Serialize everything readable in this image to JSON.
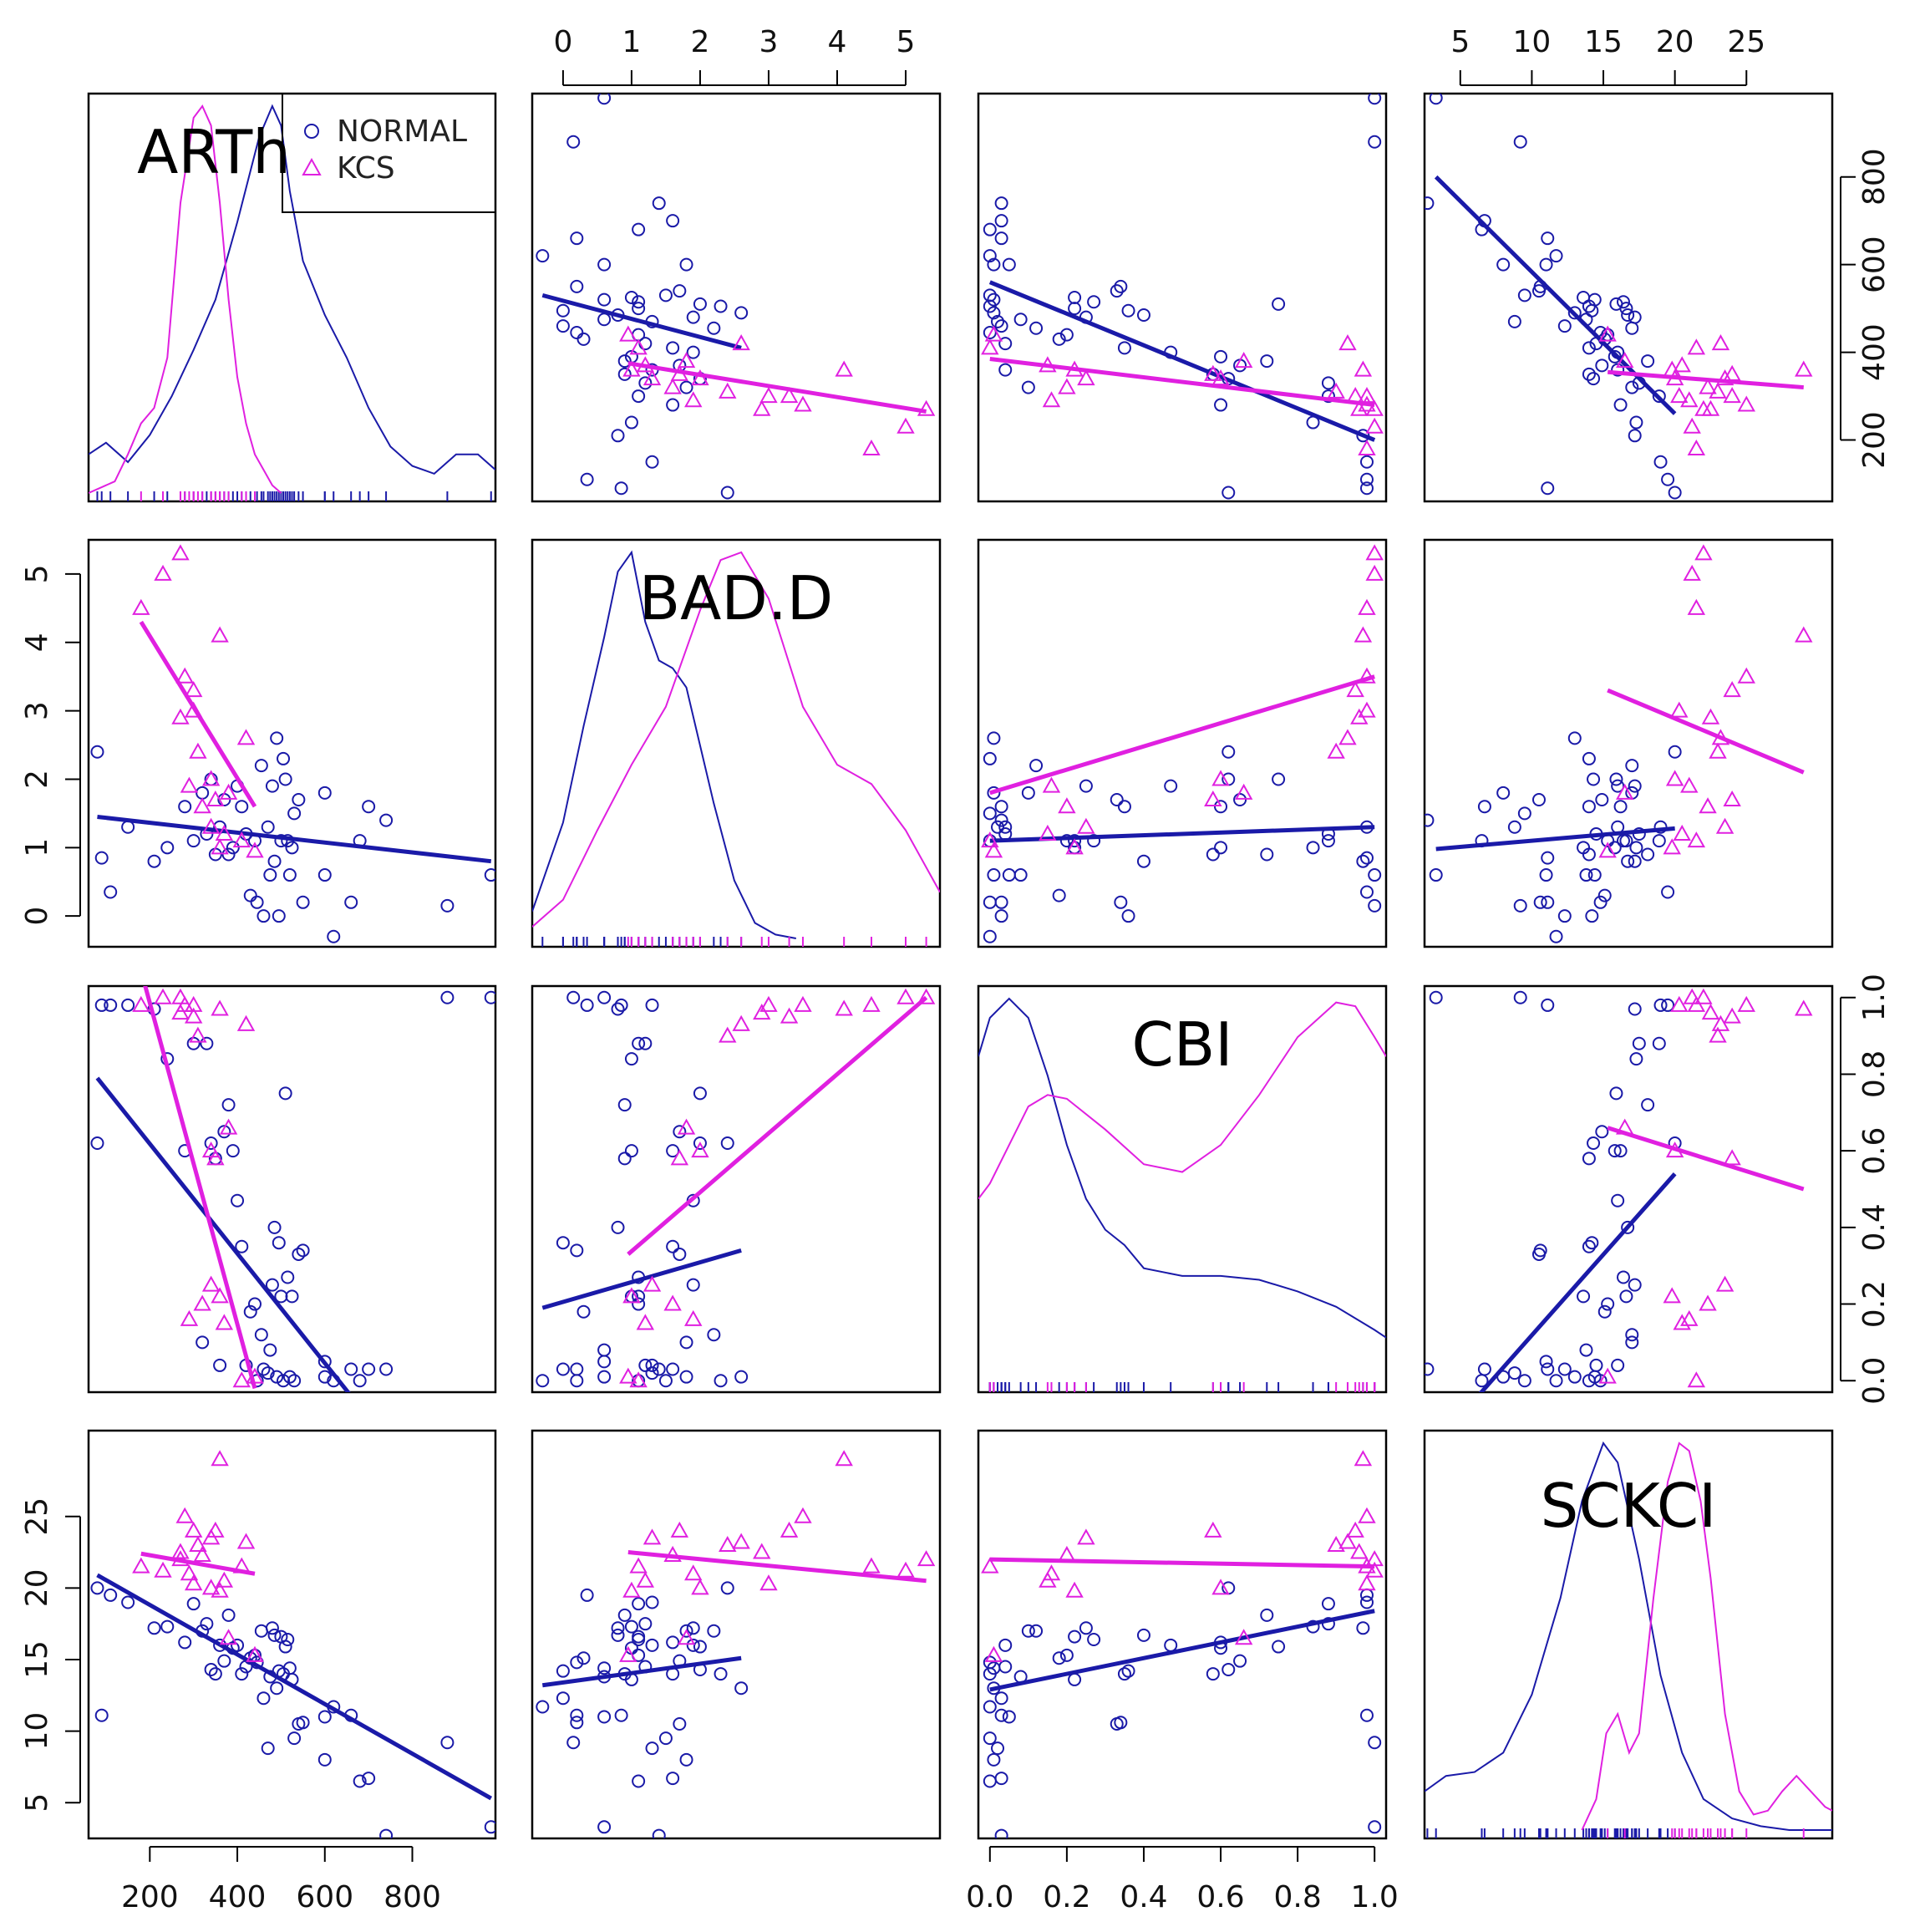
{
  "chart_data": {
    "type": "scatter-matrix",
    "variables": [
      "ARTh",
      "BAD.D",
      "CBI",
      "SCKCI"
    ],
    "ranges": {
      "ARTh": [
        60,
        990
      ],
      "BAD.D": [
        -0.45,
        5.5
      ],
      "CBI": [
        -0.03,
        1.03
      ],
      "SCKCI": [
        2.5,
        31
      ]
    },
    "ticks": {
      "ARTh": [
        200,
        400,
        600,
        800
      ],
      "BAD.D": [
        0,
        1,
        2,
        3,
        4,
        5
      ],
      "CBI": [
        0.0,
        0.2,
        0.4,
        0.6,
        0.8,
        1.0
      ],
      "SCKCI": [
        5,
        10,
        15,
        20,
        25
      ]
    },
    "tick_labels": {
      "ARTh": [
        "200",
        "400",
        "600",
        "800"
      ],
      "BAD.D": [
        "0",
        "1",
        "2",
        "3",
        "4",
        "5"
      ],
      "CBI": [
        "0.0",
        "0.2",
        "0.4",
        "0.6",
        "0.8",
        "1.0"
      ],
      "SCKCI": [
        "5",
        "10",
        "15",
        "20",
        "25"
      ]
    },
    "colors": {
      "NORMAL": "#1a1aa8",
      "KCS": "#e020e0",
      "frame": "#000000"
    },
    "legend": {
      "position": "top-right of ARTh panel",
      "entries": [
        "NORMAL",
        "KCS"
      ]
    },
    "groups": [
      {
        "name": "NORMAL",
        "marker": "circle",
        "points": [
          [
            980,
            0.6,
            1.0,
            3.3
          ],
          [
            880,
            0.15,
            1.0,
            9.2
          ],
          [
            740,
            1.4,
            0.03,
            2.7
          ],
          [
            700,
            1.6,
            0.03,
            6.7
          ],
          [
            680,
            1.1,
            0.0,
            6.5
          ],
          [
            660,
            0.2,
            0.03,
            11.1
          ],
          [
            620,
            -0.3,
            0.0,
            11.7
          ],
          [
            600,
            1.8,
            0.01,
            8.0
          ],
          [
            600,
            0.6,
            0.05,
            11.0
          ],
          [
            550,
            0.2,
            0.34,
            10.6
          ],
          [
            540,
            1.7,
            0.33,
            10.5
          ],
          [
            530,
            1.5,
            0.0,
            9.5
          ],
          [
            525,
            1.0,
            0.22,
            13.6
          ],
          [
            520,
            0.6,
            0.01,
            14.4
          ],
          [
            515,
            1.1,
            0.27,
            16.4
          ],
          [
            510,
            2.0,
            0.75,
            15.9
          ],
          [
            505,
            2.3,
            0.0,
            14.0
          ],
          [
            500,
            1.1,
            0.22,
            16.6
          ],
          [
            495,
            0.0,
            0.36,
            14.2
          ],
          [
            490,
            2.6,
            0.01,
            13.0
          ],
          [
            485,
            0.8,
            0.4,
            16.7
          ],
          [
            480,
            1.9,
            0.25,
            17.2
          ],
          [
            475,
            0.6,
            0.08,
            13.8
          ],
          [
            470,
            1.3,
            0.02,
            8.8
          ],
          [
            460,
            0.0,
            0.03,
            12.3
          ],
          [
            455,
            2.2,
            0.12,
            17.0
          ],
          [
            445,
            0.2,
            0.0,
            14.8
          ],
          [
            440,
            1.1,
            0.2,
            15.3
          ],
          [
            430,
            0.3,
            0.18,
            15.1
          ],
          [
            420,
            1.2,
            0.04,
            14.5
          ],
          [
            410,
            1.6,
            0.35,
            14.0
          ],
          [
            400,
            1.9,
            0.47,
            16.0
          ],
          [
            390,
            1.0,
            0.6,
            15.8
          ],
          [
            380,
            0.9,
            0.72,
            18.1
          ],
          [
            370,
            1.7,
            0.65,
            14.9
          ],
          [
            360,
            1.3,
            0.04,
            16.0
          ],
          [
            350,
            0.9,
            0.58,
            14.0
          ],
          [
            340,
            2.0,
            0.62,
            14.3
          ],
          [
            330,
            1.2,
            0.88,
            17.5
          ],
          [
            320,
            1.8,
            0.1,
            17.0
          ],
          [
            300,
            1.1,
            0.88,
            18.9
          ],
          [
            280,
            1.6,
            0.6,
            16.2
          ],
          [
            240,
            1.0,
            0.84,
            17.3
          ],
          [
            210,
            0.8,
            0.97,
            17.2
          ],
          [
            150,
            1.3,
            0.98,
            19.0
          ],
          [
            110,
            0.35,
            0.98,
            19.5
          ],
          [
            90,
            0.85,
            0.98,
            11.1
          ],
          [
            80,
            2.4,
            0.62,
            20.0
          ]
        ],
        "fits": {
          "BAD.D~ARTh": {
            "x": [
              80,
              980
            ],
            "y": [
              1.45,
              0.8
            ]
          },
          "CBI~ARTh": {
            "x": [
              80,
              660
            ],
            "y": [
              0.79,
              -0.04
            ]
          },
          "SCKCI~ARTh": {
            "x": [
              80,
              980
            ],
            "y": [
              20.9,
              5.3
            ]
          },
          "ARTh~BAD.D": {
            "x": [
              -0.3,
              2.6
            ],
            "y": [
              530,
              410
            ]
          },
          "CBI~BAD.D": {
            "x": [
              -0.3,
              2.6
            ],
            "y": [
              0.19,
              0.34
            ]
          },
          "SCKCI~BAD.D": {
            "x": [
              -0.3,
              2.6
            ],
            "y": [
              13.2,
              15.1
            ]
          },
          "ARTh~CBI": {
            "x": [
              0.0,
              1.0
            ],
            "y": [
              560,
              200
            ]
          },
          "BAD.D~CBI": {
            "x": [
              0.0,
              1.0
            ],
            "y": [
              1.1,
              1.3
            ]
          },
          "SCKCI~CBI": {
            "x": [
              0.0,
              1.0
            ],
            "y": [
              12.9,
              18.4
            ]
          },
          "ARTh~SCKCI": {
            "x": [
              3.3,
              20.0
            ],
            "y": [
              800,
              260
            ]
          },
          "BAD.D~SCKCI": {
            "x": [
              3.3,
              20.0
            ],
            "y": [
              0.98,
              1.28
            ]
          },
          "CBI~SCKCI": {
            "x": [
              6.0,
              20.0
            ],
            "y": [
              -0.05,
              0.54
            ]
          }
        },
        "density": {
          "ARTh": {
            "x": [
              60,
              100,
              150,
              200,
              250,
              300,
              350,
              400,
              450,
              480,
              500,
              520,
              550,
              600,
              650,
              700,
              750,
              800,
              850,
              900,
              950,
              990
            ],
            "y": [
              0.1,
              0.13,
              0.08,
              0.15,
              0.25,
              0.37,
              0.5,
              0.7,
              0.92,
              1.0,
              0.95,
              0.78,
              0.6,
              0.46,
              0.35,
              0.22,
              0.12,
              0.07,
              0.05,
              0.1,
              0.1,
              0.06
            ]
          },
          "BAD.D": {
            "x": [
              -0.45,
              0.0,
              0.3,
              0.6,
              0.8,
              1.0,
              1.2,
              1.4,
              1.6,
              1.8,
              2.0,
              2.2,
              2.5,
              2.8,
              3.1,
              3.4
            ],
            "y": [
              0.07,
              0.3,
              0.55,
              0.78,
              0.95,
              1.0,
              0.82,
              0.72,
              0.7,
              0.65,
              0.5,
              0.35,
              0.15,
              0.04,
              0.01,
              0.0
            ]
          },
          "CBI": {
            "x": [
              -0.03,
              0.0,
              0.05,
              0.1,
              0.15,
              0.2,
              0.25,
              0.3,
              0.35,
              0.4,
              0.5,
              0.6,
              0.7,
              0.8,
              0.9,
              1.0,
              1.03
            ],
            "y": [
              0.85,
              0.95,
              1.0,
              0.95,
              0.8,
              0.62,
              0.48,
              0.4,
              0.36,
              0.3,
              0.28,
              0.28,
              0.27,
              0.24,
              0.2,
              0.14,
              0.12
            ]
          },
          "SCKCI": {
            "x": [
              2.5,
              4.0,
              6.0,
              8.0,
              10.0,
              12.0,
              13.5,
              15.0,
              16.0,
              17.5,
              19.0,
              20.5,
              22.0,
              24.0,
              26.0,
              28.0,
              31.0
            ],
            "y": [
              0.1,
              0.14,
              0.15,
              0.2,
              0.35,
              0.6,
              0.85,
              1.0,
              0.95,
              0.7,
              0.4,
              0.2,
              0.08,
              0.03,
              0.01,
              0.0,
              0.0
            ]
          }
        }
      },
      {
        "name": "KCS",
        "marker": "triangle",
        "points": [
          [
            180,
            4.5,
            0.98,
            21.5
          ],
          [
            230,
            5.0,
            1.0,
            21.2
          ],
          [
            270,
            5.3,
            1.0,
            22.0
          ],
          [
            360,
            4.1,
            0.97,
            29.0
          ],
          [
            280,
            3.5,
            0.98,
            25.0
          ],
          [
            300,
            3.3,
            0.95,
            24.0
          ],
          [
            300,
            3.0,
            0.98,
            20.3
          ],
          [
            270,
            2.9,
            0.96,
            22.5
          ],
          [
            310,
            2.4,
            0.9,
            23.0
          ],
          [
            340,
            2.0,
            0.6,
            20.0
          ],
          [
            420,
            2.6,
            0.93,
            23.2
          ],
          [
            380,
            1.8,
            0.66,
            16.5
          ],
          [
            350,
            1.7,
            0.58,
            24.0
          ],
          [
            340,
            1.3,
            0.25,
            23.5
          ],
          [
            320,
            1.6,
            0.2,
            22.3
          ],
          [
            290,
            1.9,
            0.16,
            21.0
          ],
          [
            370,
            1.2,
            0.15,
            20.5
          ],
          [
            360,
            1.0,
            0.22,
            19.8
          ],
          [
            410,
            1.1,
            0.0,
            21.5
          ],
          [
            440,
            0.95,
            0.01,
            15.3
          ]
        ],
        "fits": {
          "BAD.D~ARTh": {
            "x": [
              180,
              440
            ],
            "y": [
              4.3,
              1.6
            ]
          },
          "CBI~ARTh": {
            "x": [
              180,
              440
            ],
            "y": [
              1.07,
              -0.02
            ]
          },
          "SCKCI~ARTh": {
            "x": [
              180,
              440
            ],
            "y": [
              22.4,
              21.0
            ]
          },
          "ARTh~BAD.D": {
            "x": [
              0.95,
              5.3
            ],
            "y": [
              375,
              265
            ]
          },
          "CBI~BAD.D": {
            "x": [
              0.95,
              5.3
            ],
            "y": [
              0.33,
              1.0
            ]
          },
          "SCKCI~BAD.D": {
            "x": [
              0.95,
              5.3
            ],
            "y": [
              22.5,
              20.5
            ]
          },
          "ARTh~CBI": {
            "x": [
              0.0,
              1.0
            ],
            "y": [
              385,
              280
            ]
          },
          "BAD.D~CBI": {
            "x": [
              0.0,
              1.0
            ],
            "y": [
              1.8,
              3.5
            ]
          },
          "SCKCI~CBI": {
            "x": [
              0.0,
              1.0
            ],
            "y": [
              22.0,
              21.5
            ]
          },
          "ARTh~SCKCI": {
            "x": [
              15.3,
              29.0
            ],
            "y": [
              355,
              320
            ]
          },
          "BAD.D~SCKCI": {
            "x": [
              15.3,
              29.0
            ],
            "y": [
              3.3,
              2.1
            ]
          },
          "CBI~SCKCI": {
            "x": [
              15.3,
              29.0
            ],
            "y": [
              0.66,
              0.5
            ]
          }
        },
        "density": {
          "ARTh": {
            "x": [
              60,
              120,
              150,
              180,
              210,
              240,
              270,
              300,
              320,
              340,
              360,
              380,
              400,
              420,
              440,
              460,
              480,
              500
            ],
            "y": [
              0.0,
              0.03,
              0.1,
              0.18,
              0.22,
              0.35,
              0.75,
              0.97,
              1.0,
              0.95,
              0.75,
              0.5,
              0.3,
              0.18,
              0.1,
              0.06,
              0.02,
              0.0
            ]
          },
          "BAD.D": {
            "x": [
              -0.45,
              0.0,
              0.5,
              1.0,
              1.5,
              2.0,
              2.3,
              2.6,
              3.0,
              3.5,
              4.0,
              4.5,
              5.0,
              5.5
            ],
            "y": [
              0.03,
              0.1,
              0.28,
              0.45,
              0.6,
              0.85,
              0.98,
              1.0,
              0.88,
              0.6,
              0.45,
              0.4,
              0.28,
              0.12
            ]
          },
          "CBI": {
            "x": [
              -0.03,
              0.0,
              0.05,
              0.1,
              0.15,
              0.2,
              0.3,
              0.4,
              0.5,
              0.6,
              0.7,
              0.8,
              0.9,
              0.95,
              1.0,
              1.03
            ],
            "y": [
              0.48,
              0.52,
              0.62,
              0.72,
              0.75,
              0.74,
              0.66,
              0.57,
              0.55,
              0.62,
              0.75,
              0.9,
              0.99,
              0.98,
              0.9,
              0.85
            ]
          },
          "SCKCI": {
            "x": [
              13.5,
              14.5,
              15.2,
              16.0,
              16.8,
              17.5,
              18.5,
              19.5,
              20.3,
              21.0,
              21.8,
              22.5,
              23.5,
              24.5,
              25.5,
              26.5,
              27.5,
              28.5,
              29.5,
              30.5,
              31.0
            ],
            "y": [
              0.0,
              0.08,
              0.25,
              0.3,
              0.2,
              0.25,
              0.6,
              0.9,
              1.0,
              0.98,
              0.85,
              0.65,
              0.3,
              0.1,
              0.04,
              0.05,
              0.1,
              0.14,
              0.1,
              0.06,
              0.05
            ]
          }
        }
      }
    ]
  }
}
